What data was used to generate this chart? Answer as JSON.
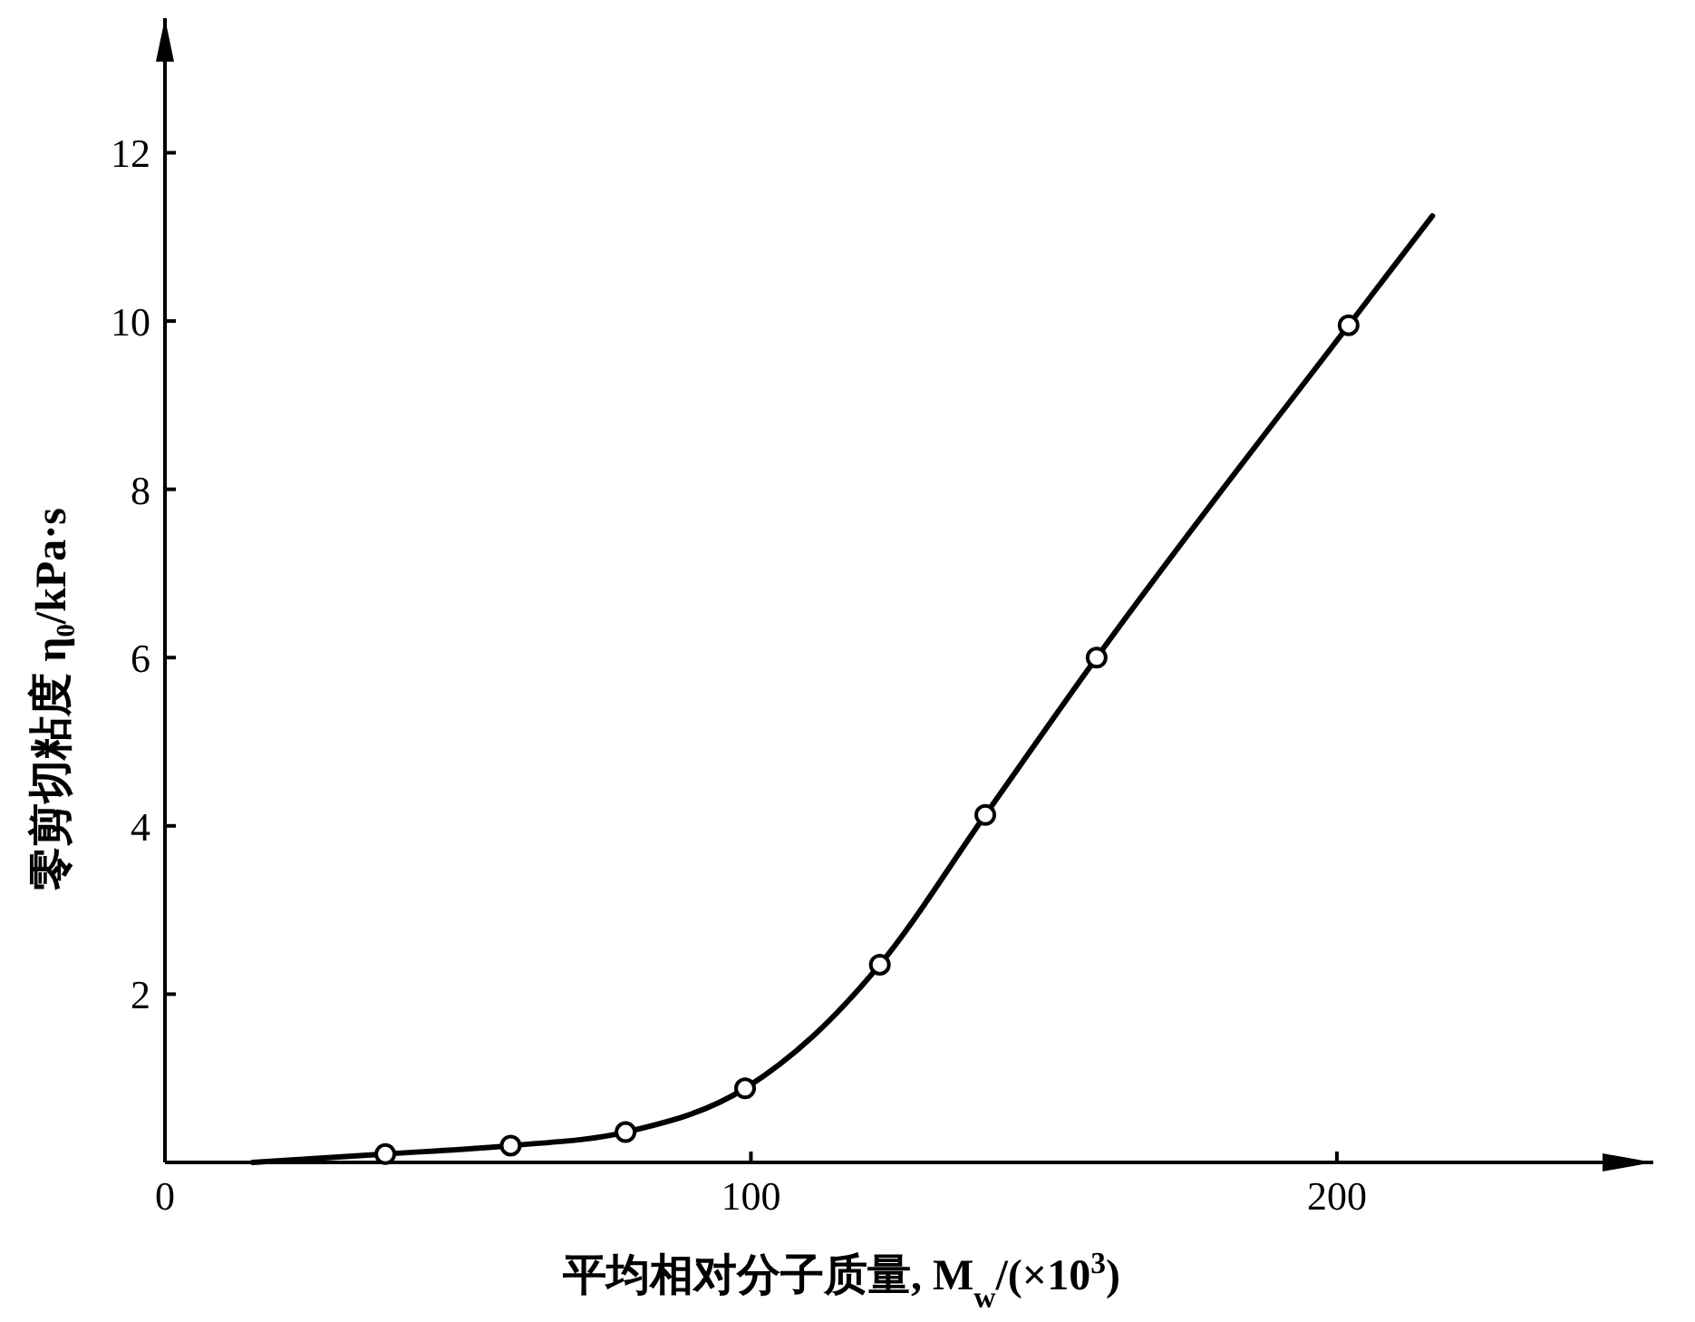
{
  "chart_data": {
    "type": "line",
    "xlabel": "平均相对分子质量, M$_{w}$/(×10$^{3}$)",
    "ylabel": "零剪切粘度 η₀/kPa·s",
    "xlim": [
      0,
      254
    ],
    "ylim": [
      0,
      13.6
    ],
    "xticks": [
      0,
      100,
      200
    ],
    "yticks": [
      2,
      4,
      6,
      8,
      10,
      12
    ],
    "series": [
      {
        "color": "#000000",
        "marker": "none",
        "x": [
          15,
          37.6,
          59,
          78.6,
          99,
          110.6,
          122,
          140,
          159,
          202,
          216.3
        ],
        "values": [
          0,
          0.1,
          0.2,
          0.36,
          0.88,
          1.5,
          2.35,
          4.13,
          6.0,
          9.95,
          11.25
        ]
      },
      {
        "type": "scatter",
        "color": "#000000",
        "marker": "circle",
        "x": [
          37.6,
          59,
          78.6,
          99,
          122,
          140,
          159,
          202
        ],
        "values": [
          0.1,
          0.2,
          0.36,
          0.88,
          2.35,
          4.13,
          6.0,
          9.95
        ]
      }
    ]
  }
}
